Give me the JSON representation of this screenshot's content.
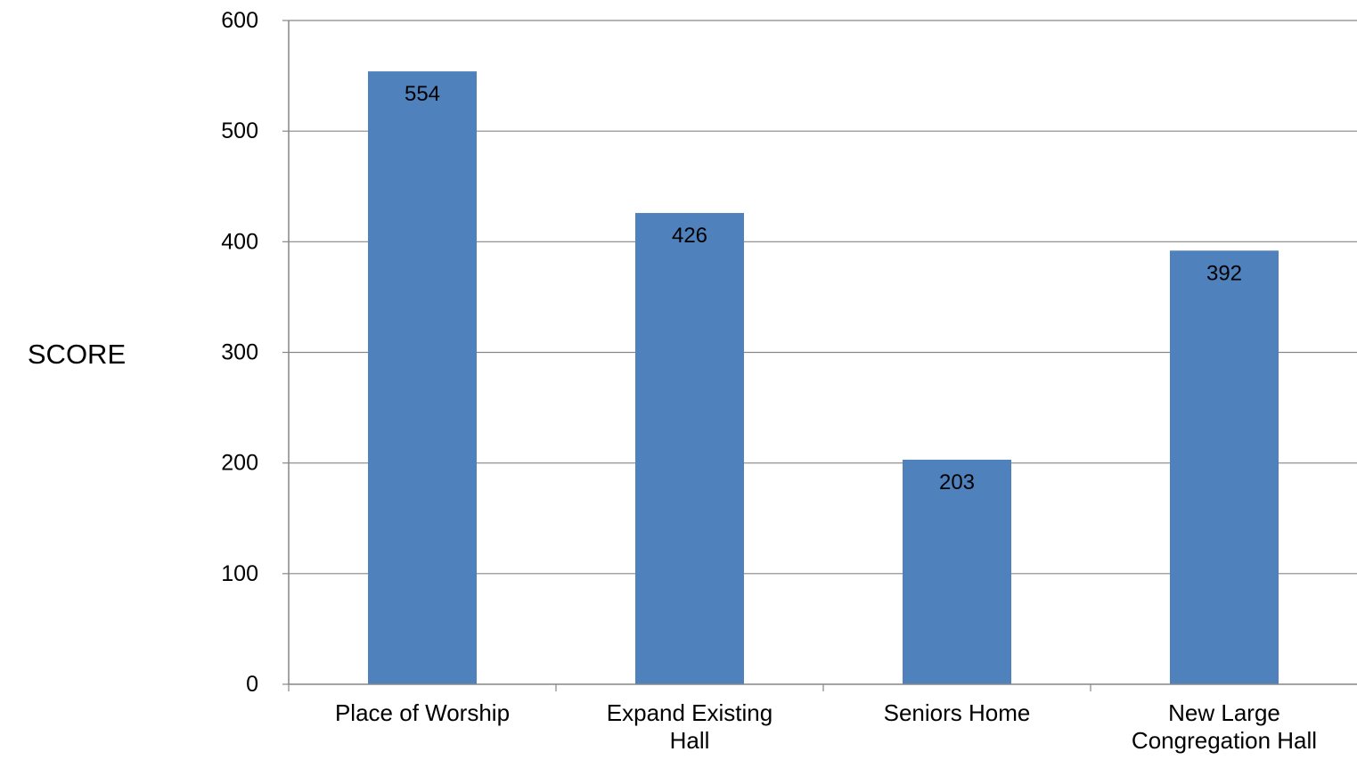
{
  "chart_data": {
    "type": "bar",
    "title": "",
    "xlabel": "",
    "ylabel": "SCORE",
    "categories": [
      [
        "Place of Worship"
      ],
      [
        "Expand Existing",
        "Hall"
      ],
      [
        "Seniors Home"
      ],
      [
        "New Large",
        "Congregation Hall"
      ]
    ],
    "values": [
      554,
      426,
      203,
      392
    ],
    "data_labels": [
      "554",
      "426",
      "203",
      "392"
    ],
    "ylim": [
      0,
      600
    ],
    "yticks": [
      0,
      100,
      200,
      300,
      400,
      500,
      600
    ],
    "grid": true,
    "legend": "none",
    "colors": {
      "bar": "#4F81BD",
      "gridline": "#868686",
      "axis": "#868686",
      "text": "#000000"
    }
  }
}
